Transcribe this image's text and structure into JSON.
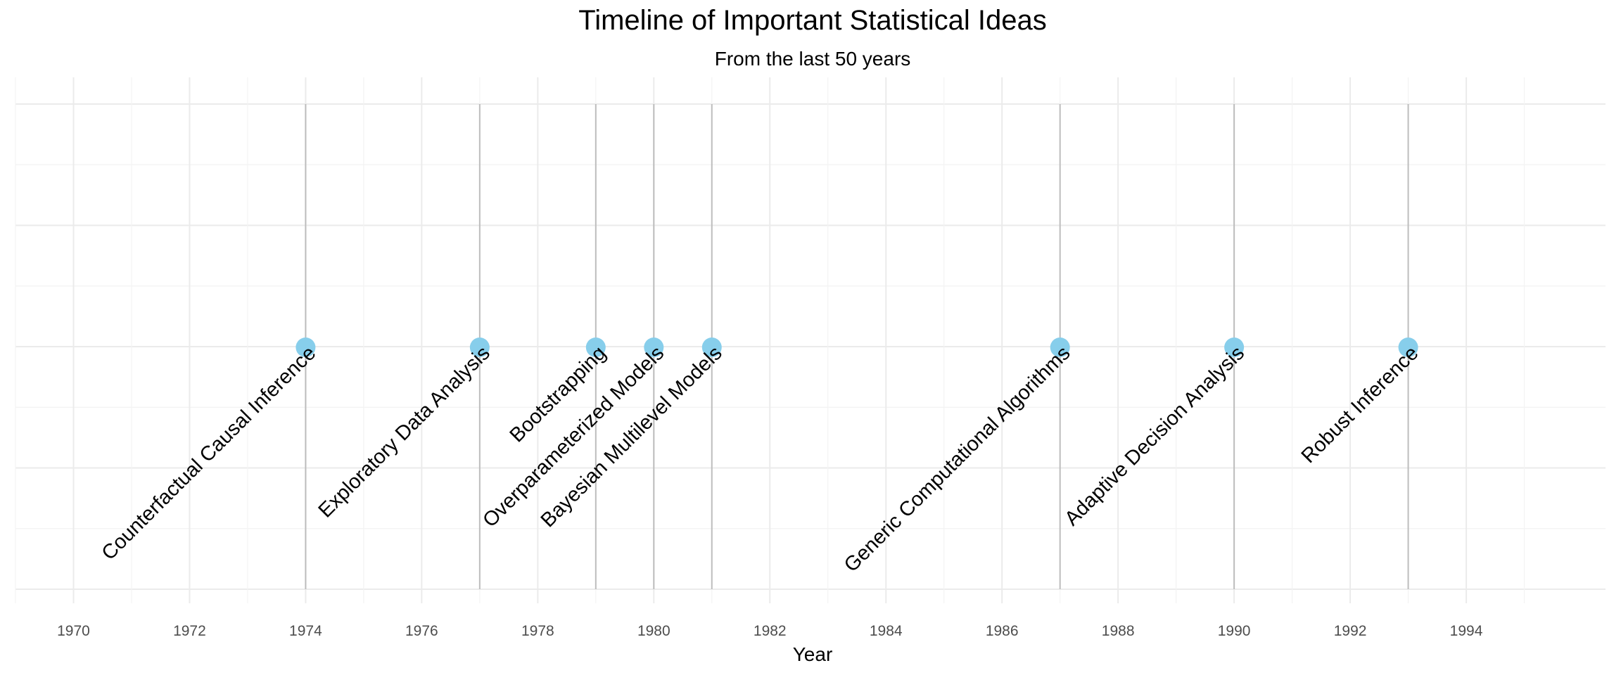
{
  "chart_data": {
    "type": "timeline",
    "title": "Timeline of Important Statistical Ideas",
    "subtitle": "From the last 50 years",
    "xlabel": "Year",
    "ylabel": "",
    "xlim": [
      1969,
      1996.4
    ],
    "x_ticks": [
      1970,
      1972,
      1974,
      1976,
      1978,
      1980,
      1982,
      1984,
      1986,
      1988,
      1990,
      1992,
      1994
    ],
    "grid": true,
    "events": [
      {
        "year": 1974,
        "label": "Counterfactual Causal Inference"
      },
      {
        "year": 1977,
        "label": "Exploratory Data Analysis"
      },
      {
        "year": 1979,
        "label": "Bootstrapping"
      },
      {
        "year": 1980,
        "label": "Overparameterized Models"
      },
      {
        "year": 1981,
        "label": "Bayesian Multilevel Models"
      },
      {
        "year": 1987,
        "label": "Generic Computational Algorithms"
      },
      {
        "year": 1990,
        "label": "Adaptive Decision Analysis"
      },
      {
        "year": 1993,
        "label": "Robust Inference"
      }
    ],
    "colors": {
      "marker": "#87ceeb",
      "stem": "#bdbdbd",
      "grid_major": "#ebebeb",
      "grid_minor": "#f3f3f3",
      "text": "#000000",
      "tick_text": "#4d4d4d"
    }
  }
}
